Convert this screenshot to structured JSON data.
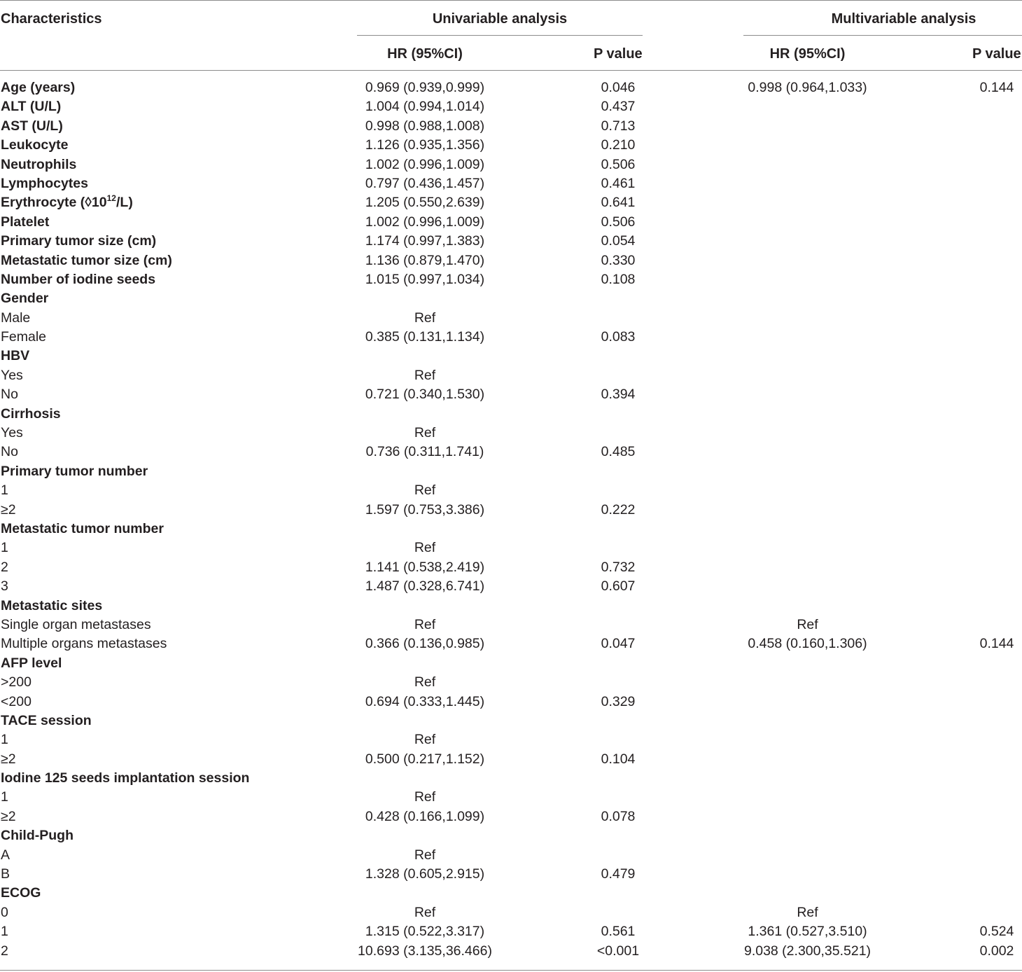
{
  "headers": {
    "characteristics": "Characteristics",
    "univariable": "Univariable analysis",
    "multivariable": "Multivariable analysis",
    "hr": "HR (95%CI)",
    "p": "P value"
  },
  "rows": [
    {
      "label": "Age (years)",
      "bold": true,
      "uhr": "0.969 (0.939,0.999)",
      "up": "0.046",
      "mhr": "0.998 (0.964,1.033)",
      "mp": "0.144"
    },
    {
      "label": "ALT (U/L)",
      "bold": true,
      "uhr": "1.004 (0.994,1.014)",
      "up": "0.437",
      "mhr": "",
      "mp": ""
    },
    {
      "label": "AST (U/L)",
      "bold": true,
      "uhr": "0.998 (0.988,1.008)",
      "up": "0.713",
      "mhr": "",
      "mp": ""
    },
    {
      "label": "Leukocyte",
      "bold": true,
      "uhr": "1.126 (0.935,1.356)",
      "up": "0.210",
      "mhr": "",
      "mp": ""
    },
    {
      "label": "Neutrophils",
      "bold": true,
      "uhr": "1.002 (0.996,1.009)",
      "up": "0.506",
      "mhr": "",
      "mp": ""
    },
    {
      "label": "Lymphocytes",
      "bold": true,
      "uhr": "0.797 (0.436,1.457)",
      "up": "0.461",
      "mhr": "",
      "mp": ""
    },
    {
      "label": "Erythrocyte (◊10",
      "sup": "12",
      "label_tail": "/L)",
      "bold": true,
      "uhr": "1.205 (0.550,2.639)",
      "up": "0.641",
      "mhr": "",
      "mp": ""
    },
    {
      "label": "Platelet",
      "bold": true,
      "uhr": "1.002 (0.996,1.009)",
      "up": "0.506",
      "mhr": "",
      "mp": ""
    },
    {
      "label": "Primary tumor size (cm)",
      "bold": true,
      "uhr": "1.174 (0.997,1.383)",
      "up": "0.054",
      "mhr": "",
      "mp": ""
    },
    {
      "label": "Metastatic tumor size (cm)",
      "bold": true,
      "uhr": "1.136 (0.879,1.470)",
      "up": "0.330",
      "mhr": "",
      "mp": ""
    },
    {
      "label": "Number of iodine seeds",
      "bold": true,
      "uhr": "1.015 (0.997,1.034)",
      "up": "0.108",
      "mhr": "",
      "mp": ""
    },
    {
      "label": "Gender",
      "bold": true,
      "uhr": "",
      "up": "",
      "mhr": "",
      "mp": ""
    },
    {
      "label": "Male",
      "bold": false,
      "uhr": "Ref",
      "up": "",
      "mhr": "",
      "mp": ""
    },
    {
      "label": "Female",
      "bold": false,
      "uhr": "0.385 (0.131,1.134)",
      "up": "0.083",
      "mhr": "",
      "mp": ""
    },
    {
      "label": "HBV",
      "bold": true,
      "uhr": "",
      "up": "",
      "mhr": "",
      "mp": ""
    },
    {
      "label": "Yes",
      "bold": false,
      "uhr": "Ref",
      "up": "",
      "mhr": "",
      "mp": ""
    },
    {
      "label": "No",
      "bold": false,
      "uhr": "0.721 (0.340,1.530)",
      "up": "0.394",
      "mhr": "",
      "mp": ""
    },
    {
      "label": "Cirrhosis",
      "bold": true,
      "uhr": "",
      "up": "",
      "mhr": "",
      "mp": ""
    },
    {
      "label": "Yes",
      "bold": false,
      "uhr": "Ref",
      "up": "",
      "mhr": "",
      "mp": ""
    },
    {
      "label": "No",
      "bold": false,
      "uhr": "0.736 (0.311,1.741)",
      "up": "0.485",
      "mhr": "",
      "mp": ""
    },
    {
      "label": "Primary tumor number",
      "bold": true,
      "uhr": "",
      "up": "",
      "mhr": "",
      "mp": ""
    },
    {
      "label": "1",
      "bold": false,
      "uhr": "Ref",
      "up": "",
      "mhr": "",
      "mp": ""
    },
    {
      "label": "≥2",
      "bold": false,
      "uhr": "1.597 (0.753,3.386)",
      "up": "0.222",
      "mhr": "",
      "mp": ""
    },
    {
      "label": "Metastatic tumor number",
      "bold": true,
      "uhr": "",
      "up": "",
      "mhr": "",
      "mp": ""
    },
    {
      "label": "1",
      "bold": false,
      "uhr": "Ref",
      "up": "",
      "mhr": "",
      "mp": ""
    },
    {
      "label": "2",
      "bold": false,
      "uhr": "1.141 (0.538,2.419)",
      "up": "0.732",
      "mhr": "",
      "mp": ""
    },
    {
      "label": "3",
      "bold": false,
      "uhr": "1.487 (0.328,6.741)",
      "up": "0.607",
      "mhr": "",
      "mp": ""
    },
    {
      "label": "Metastatic sites",
      "bold": true,
      "uhr": "",
      "up": "",
      "mhr": "",
      "mp": ""
    },
    {
      "label": "Single organ metastases",
      "bold": false,
      "uhr": "Ref",
      "up": "",
      "mhr": "Ref",
      "mp": ""
    },
    {
      "label": "Multiple organs metastases",
      "bold": false,
      "uhr": "0.366 (0.136,0.985)",
      "up": "0.047",
      "mhr": "0.458 (0.160,1.306)",
      "mp": "0.144"
    },
    {
      "label": "AFP level",
      "bold": true,
      "uhr": "",
      "up": "",
      "mhr": "",
      "mp": ""
    },
    {
      "label": ">200",
      "bold": false,
      "uhr": "Ref",
      "up": "",
      "mhr": "",
      "mp": ""
    },
    {
      "label": "<200",
      "bold": false,
      "uhr": "0.694 (0.333,1.445)",
      "up": "0.329",
      "mhr": "",
      "mp": ""
    },
    {
      "label": "TACE session",
      "bold": true,
      "uhr": "",
      "up": "",
      "mhr": "",
      "mp": ""
    },
    {
      "label": "1",
      "bold": false,
      "uhr": "Ref",
      "up": "",
      "mhr": "",
      "mp": ""
    },
    {
      "label": "≥2",
      "bold": false,
      "uhr": "0.500 (0.217,1.152)",
      "up": "0.104",
      "mhr": "",
      "mp": ""
    },
    {
      "label": "Iodine 125 seeds implantation session",
      "bold": true,
      "uhr": "",
      "up": "",
      "mhr": "",
      "mp": ""
    },
    {
      "label": "1",
      "bold": false,
      "uhr": "Ref",
      "up": "",
      "mhr": "",
      "mp": ""
    },
    {
      "label": "≥2",
      "bold": false,
      "uhr": "0.428 (0.166,1.099)",
      "up": "0.078",
      "mhr": "",
      "mp": ""
    },
    {
      "label": "Child-Pugh",
      "bold": true,
      "uhr": "",
      "up": "",
      "mhr": "",
      "mp": ""
    },
    {
      "label": "A",
      "bold": false,
      "uhr": "Ref",
      "up": "",
      "mhr": "",
      "mp": ""
    },
    {
      "label": "B",
      "bold": false,
      "uhr": "1.328 (0.605,2.915)",
      "up": "0.479",
      "mhr": "",
      "mp": ""
    },
    {
      "label": "ECOG",
      "bold": true,
      "uhr": "",
      "up": "",
      "mhr": "",
      "mp": ""
    },
    {
      "label": "0",
      "bold": false,
      "uhr": "Ref",
      "up": "",
      "mhr": "Ref",
      "mp": ""
    },
    {
      "label": "1",
      "bold": false,
      "uhr": "1.315 (0.522,3.317)",
      "up": "0.561",
      "mhr": "1.361 (0.527,3.510)",
      "mp": "0.524"
    },
    {
      "label": "2",
      "bold": false,
      "uhr": "10.693 (3.135,36.466)",
      "up": "<0.001",
      "mhr": "9.038 (2.300,35.521)",
      "mp": "0.002"
    }
  ]
}
